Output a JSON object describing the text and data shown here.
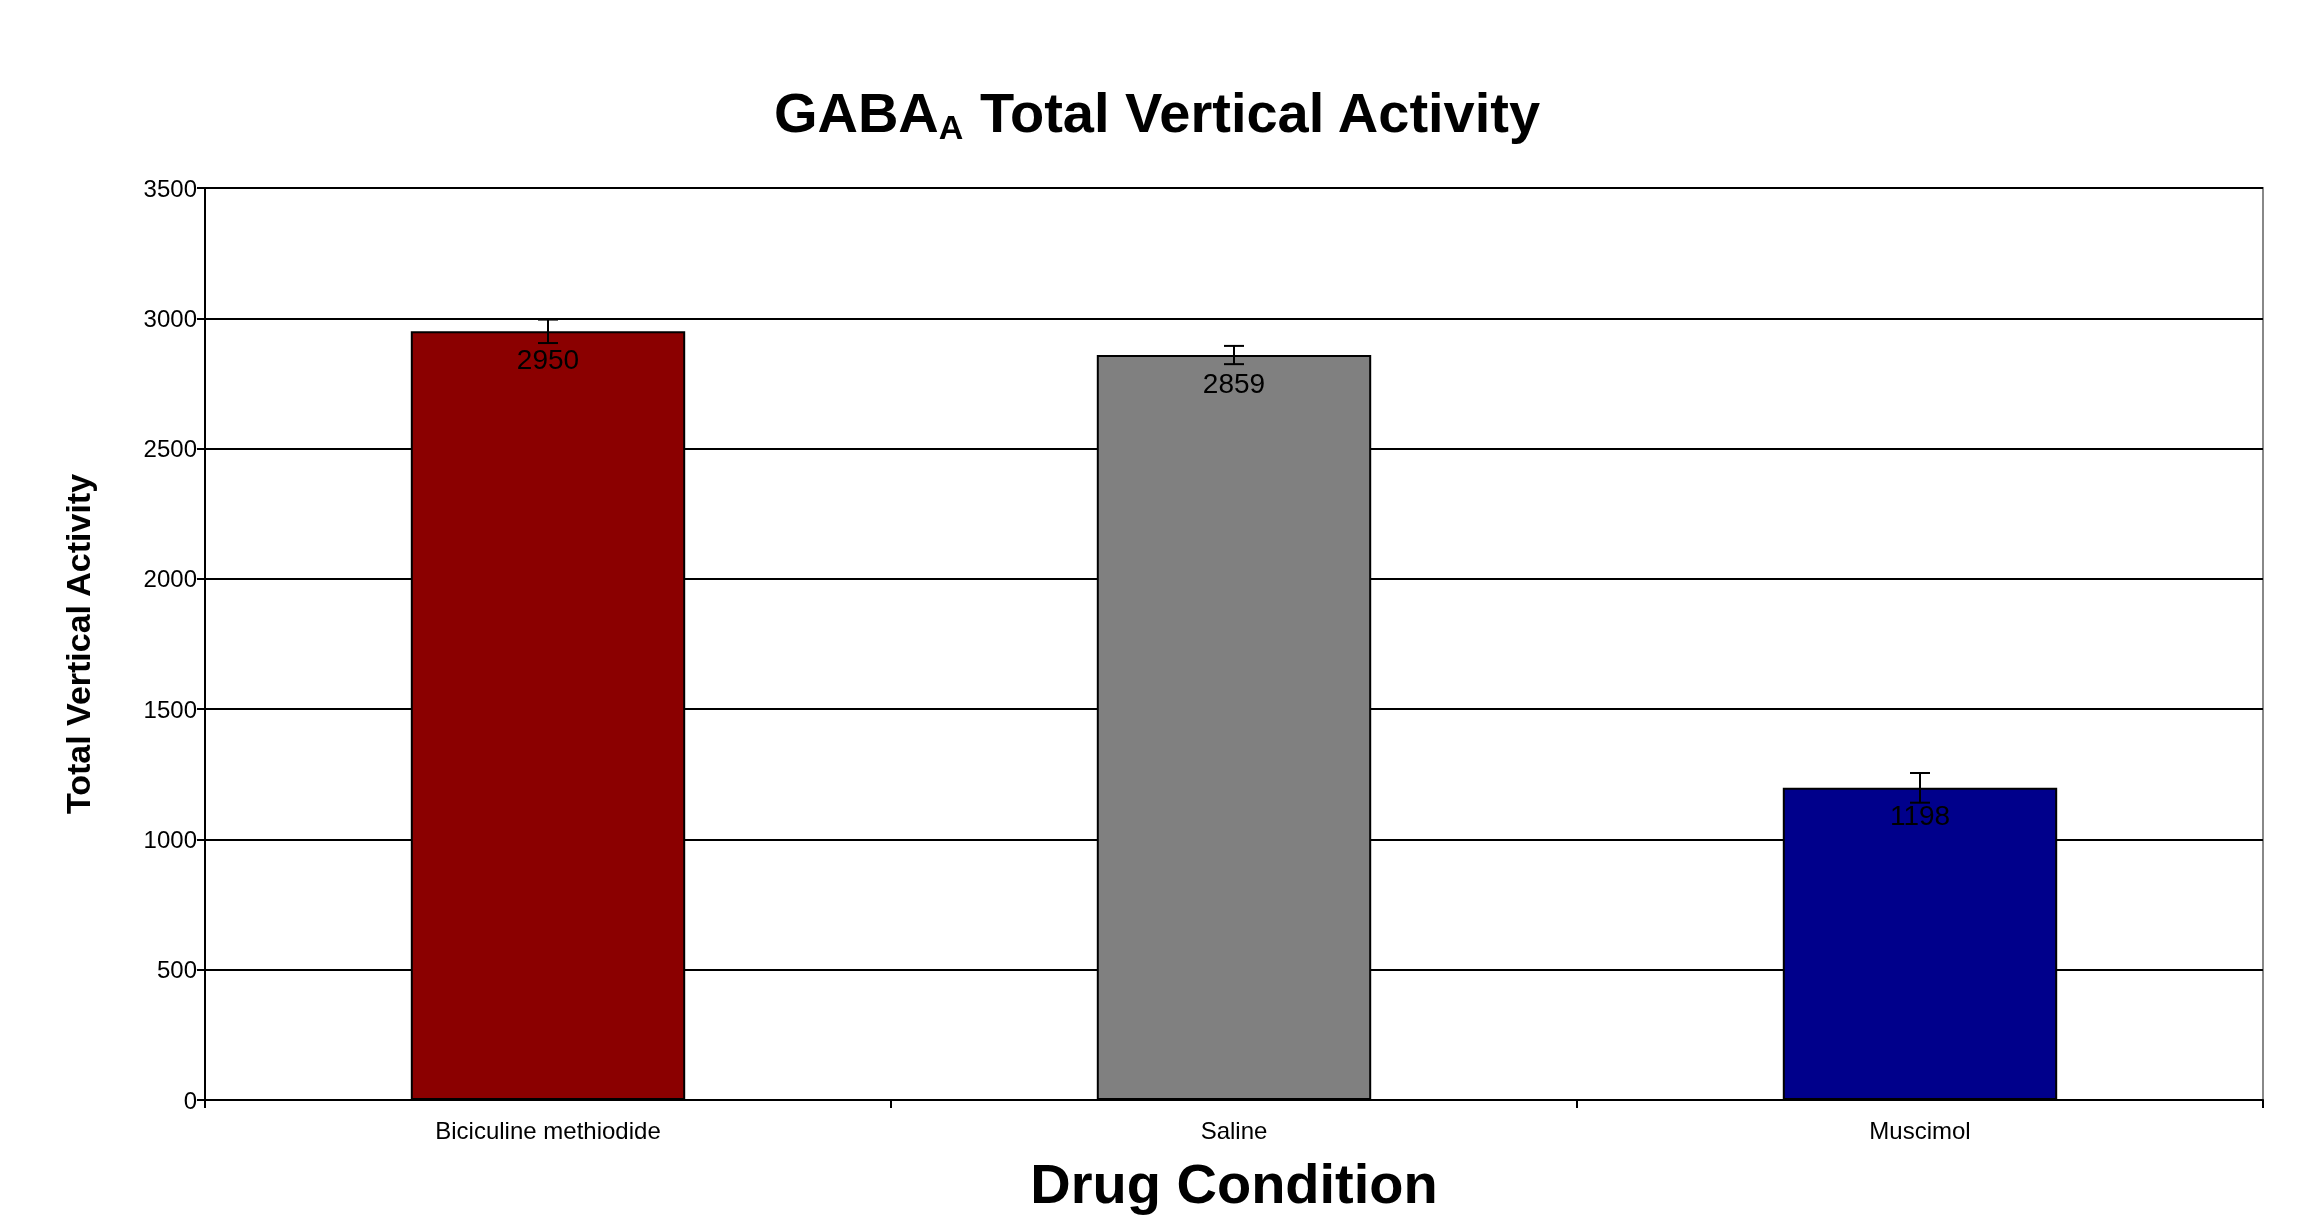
{
  "chart_data": {
    "type": "bar",
    "title": "GABA$_{A}$ Total Vertical Activity",
    "xlabel": "Drug Condition",
    "ylabel": "Total Vertical Activity",
    "categories": [
      "Biciculine methiodide",
      "Saline",
      "Muscimol"
    ],
    "values": [
      2950,
      2859,
      1198
    ],
    "colors": [
      "#8b0000",
      "#808080",
      "#00008b"
    ],
    "errors": [
      45,
      35,
      57
    ],
    "ylim": [
      0,
      3500
    ],
    "yticks": [
      0,
      500,
      1000,
      1500,
      2000,
      2500,
      3000,
      3500
    ],
    "grid": "y",
    "data_labels": true
  }
}
